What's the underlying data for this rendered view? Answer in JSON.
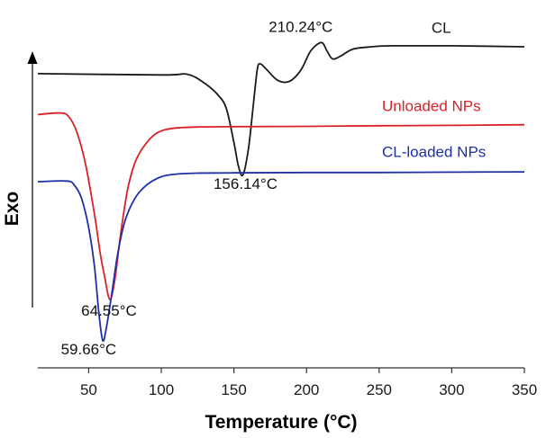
{
  "chart_data": {
    "type": "line",
    "title": "",
    "xlabel": "Temperature (°C)",
    "ylabel": "Exo",
    "xlim": [
      15,
      350
    ],
    "ylim": [
      0,
      100
    ],
    "x_ticks": [
      50,
      100,
      150,
      200,
      250,
      300,
      350
    ],
    "x_tick_labels": [
      "50",
      "100",
      "150",
      "200",
      "250",
      "300",
      "350"
    ],
    "grid": false,
    "series": [
      {
        "name": "CL",
        "color": "#1a1a1a",
        "points": [
          [
            15,
            83.0
          ],
          [
            100,
            82.6
          ],
          [
            118,
            82.8
          ],
          [
            130,
            80.0
          ],
          [
            140,
            76.0
          ],
          [
            145,
            72.0
          ],
          [
            150,
            62.0
          ],
          [
            153,
            55.0
          ],
          [
            156.14,
            52.0
          ],
          [
            160,
            60.0
          ],
          [
            163,
            72.0
          ],
          [
            166,
            84.0
          ],
          [
            168,
            86.0
          ],
          [
            172,
            84.5
          ],
          [
            180,
            81.0
          ],
          [
            188,
            80.6
          ],
          [
            196,
            84.0
          ],
          [
            203,
            90.0
          ],
          [
            210.24,
            92.5
          ],
          [
            214,
            90.0
          ],
          [
            218,
            87.5
          ],
          [
            224,
            88.5
          ],
          [
            232,
            90.5
          ],
          [
            245,
            91.2
          ],
          [
            260,
            91.5
          ],
          [
            300,
            91.5
          ],
          [
            350,
            91.2
          ]
        ]
      },
      {
        "name": "Unloaded NPs",
        "color": "#d92127",
        "points": [
          [
            15,
            70.5
          ],
          [
            30,
            71.0
          ],
          [
            36,
            70.0
          ],
          [
            42,
            65.0
          ],
          [
            48,
            55.0
          ],
          [
            54,
            40.0
          ],
          [
            58,
            28.0
          ],
          [
            61,
            21.0
          ],
          [
            64.55,
            14.0
          ],
          [
            68,
            20.0
          ],
          [
            72,
            34.0
          ],
          [
            77,
            48.0
          ],
          [
            83,
            57.0
          ],
          [
            92,
            63.0
          ],
          [
            100,
            65.5
          ],
          [
            110,
            66.4
          ],
          [
            125,
            66.7
          ],
          [
            150,
            66.8
          ],
          [
            200,
            66.9
          ],
          [
            250,
            67.1
          ],
          [
            300,
            67.2
          ],
          [
            350,
            67.4
          ]
        ]
      },
      {
        "name": "CL-loaded NPs",
        "color": "#1f2fa8",
        "points": [
          [
            15,
            50.0
          ],
          [
            35,
            50.2
          ],
          [
            40,
            49.0
          ],
          [
            45,
            45.0
          ],
          [
            50,
            36.0
          ],
          [
            54,
            24.0
          ],
          [
            57,
            10.0
          ],
          [
            59.66,
            1.5
          ],
          [
            62,
            5.0
          ],
          [
            66,
            16.0
          ],
          [
            70,
            28.0
          ],
          [
            75,
            38.0
          ],
          [
            82,
            45.0
          ],
          [
            90,
            49.0
          ],
          [
            100,
            51.5
          ],
          [
            110,
            52.3
          ],
          [
            125,
            52.6
          ],
          [
            150,
            52.7
          ],
          [
            200,
            52.8
          ],
          [
            250,
            52.8
          ],
          [
            300,
            52.9
          ],
          [
            350,
            53.0
          ]
        ]
      }
    ],
    "series_labels": [
      {
        "text": "CL",
        "x": 286,
        "y": 95.5
      },
      {
        "text": "Unloaded NPs",
        "x": 252,
        "y": 71.5
      },
      {
        "text": "CL-loaded NPs",
        "x": 252,
        "y": 57.5
      }
    ],
    "annotations": [
      {
        "text": "210.24°C",
        "x": 196,
        "y": 95.8
      },
      {
        "text": "156.14°C",
        "x": 158,
        "y": 47.8
      },
      {
        "text": "64.55°C",
        "x": 64,
        "y": 9.0
      },
      {
        "text": "59.66°C",
        "x": 50,
        "y": -2.8
      }
    ]
  }
}
